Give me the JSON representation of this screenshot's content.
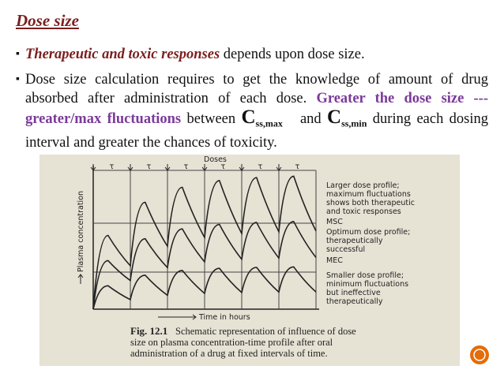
{
  "title": "Dose size",
  "bullets": [
    {
      "emphasis": "Therapeutic and toxic responses",
      "text": "depends upon dose size."
    },
    {
      "text": "Dose size calculation requires to get the knowledge of amount of drug absorbed after administration of each dose.",
      "emphasis": "Greater the dose size --- greater/max fluctuations",
      "between": "between",
      "c1": "C",
      "c1_sub": "ss,max",
      "and": "and",
      "c2": "C",
      "c2_sub": "ss,min",
      "end": "during each dosing interval and greater the chances of toxicity."
    }
  ],
  "figure": {
    "doses_label": "Doses",
    "interval_label": "τ",
    "y_label": "Plasma concentration",
    "x_label": "Time in hours",
    "annotations": [
      {
        "lines": [
          "Larger dose profile;",
          "maximum fluctuations",
          "shows both therapeutic",
          "and toxic responses"
        ]
      },
      {
        "lines": [
          "MSC"
        ]
      },
      {
        "lines": [
          "Optimum dose profile;",
          "therapeutically",
          "successful"
        ]
      },
      {
        "lines": [
          "MEC"
        ]
      },
      {
        "lines": [
          "Smaller dose profile;",
          "minimum fluctuations",
          "but ineffective",
          "therapeutically"
        ]
      }
    ],
    "caption_number": "Fig. 12.1",
    "caption_lines": [
      "Schematic representation of influence of dose",
      "size on plasma concentration-time profile after oral",
      "administration of a drug at fixed intervals of time."
    ]
  }
}
